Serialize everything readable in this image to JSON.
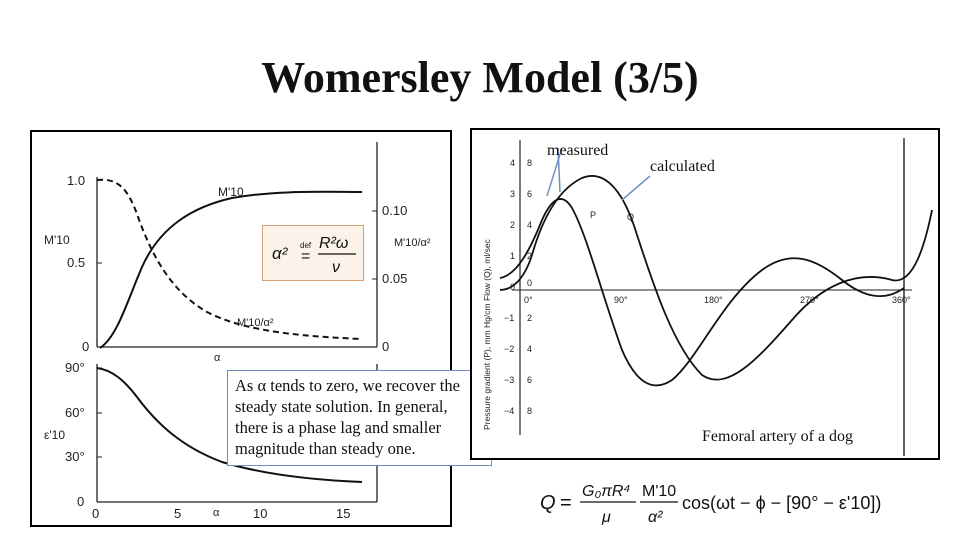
{
  "slide": {
    "title": "Womersley Model (3/5)"
  },
  "left_figure": {
    "top_chart": {
      "y_left_ticks": [
        "1.0",
        "0.5",
        "0"
      ],
      "y_left_label": "M'10",
      "y_right_ticks": [
        "0.10",
        "0.05",
        "0"
      ],
      "y_right_label": "M'10/α²",
      "x_label": "α",
      "curve_label_upper": "M'10",
      "curve_label_lower": "M'10/α²"
    },
    "bottom_chart": {
      "y_ticks": [
        "90°",
        "60°",
        "30°",
        "0"
      ],
      "y_label": "ε'10",
      "x_ticks": [
        "0",
        "5",
        "10",
        "15"
      ],
      "x_label": "α"
    },
    "equation": {
      "lhs": "α²",
      "def": "def",
      "eq": "=",
      "numerator": "R²ω",
      "denominator": "ν"
    },
    "note_text": "As α tends to zero, we recover the steady state solution. In general, there is a phase lag and smaller magnitude than steady one."
  },
  "right_figure": {
    "label_measured": "measured",
    "label_calculated": "calculated",
    "label_caption": "Femoral artery of a dog",
    "y_label": "Pressure gradient (P), mm Hg/cm    Flow (Q), ml/sec",
    "y_ticks_pressure": [
      "4",
      "3",
      "2",
      "1",
      "0",
      "−1",
      "−2",
      "−3",
      "−4"
    ],
    "y_ticks_flow": [
      "8",
      "6",
      "4",
      "2",
      "0",
      "2",
      "4",
      "6",
      "8"
    ],
    "x_ticks": [
      "0°",
      "90°",
      "180°",
      "270°",
      "360°"
    ],
    "curve_label_p": "P",
    "curve_label_q": "Q"
  },
  "formula": {
    "lhs": "Q",
    "eq": "=",
    "frac1_num": "G₀πR⁴",
    "frac1_den": "μ",
    "frac2_num": "M'10",
    "frac2_den": "α²",
    "tail": "cos(ωt − ϕ − [90° − ε'10])"
  }
}
